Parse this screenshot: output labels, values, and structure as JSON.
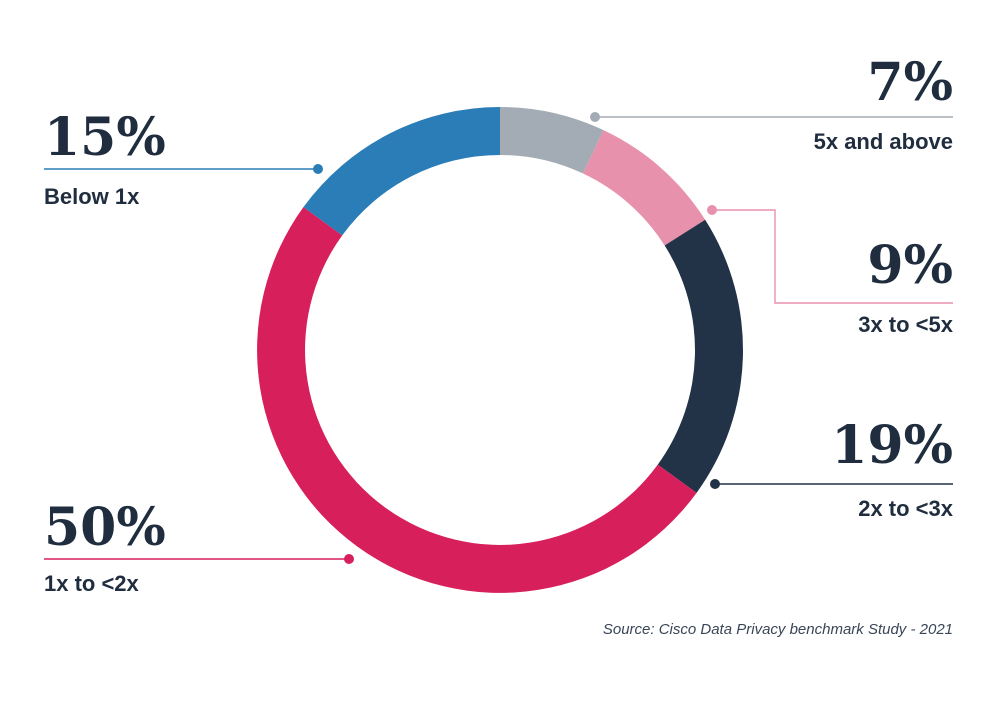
{
  "chart_data": {
    "type": "pie",
    "style": "donut",
    "categories": [
      "5x and above",
      "3x to <5x",
      "2x to <3x",
      "1x to <2x",
      "Below 1x"
    ],
    "values": [
      7,
      9,
      19,
      50,
      15
    ],
    "value_labels": [
      "7%",
      "9%",
      "19%",
      "50%",
      "15%"
    ],
    "colors": [
      "#a3acb4",
      "#e891ad",
      "#223247",
      "#d71f5b",
      "#2a7db7"
    ],
    "start": "top, clockwise",
    "source": "Source: Cisco Data Privacy benchmark Study - 2021"
  }
}
